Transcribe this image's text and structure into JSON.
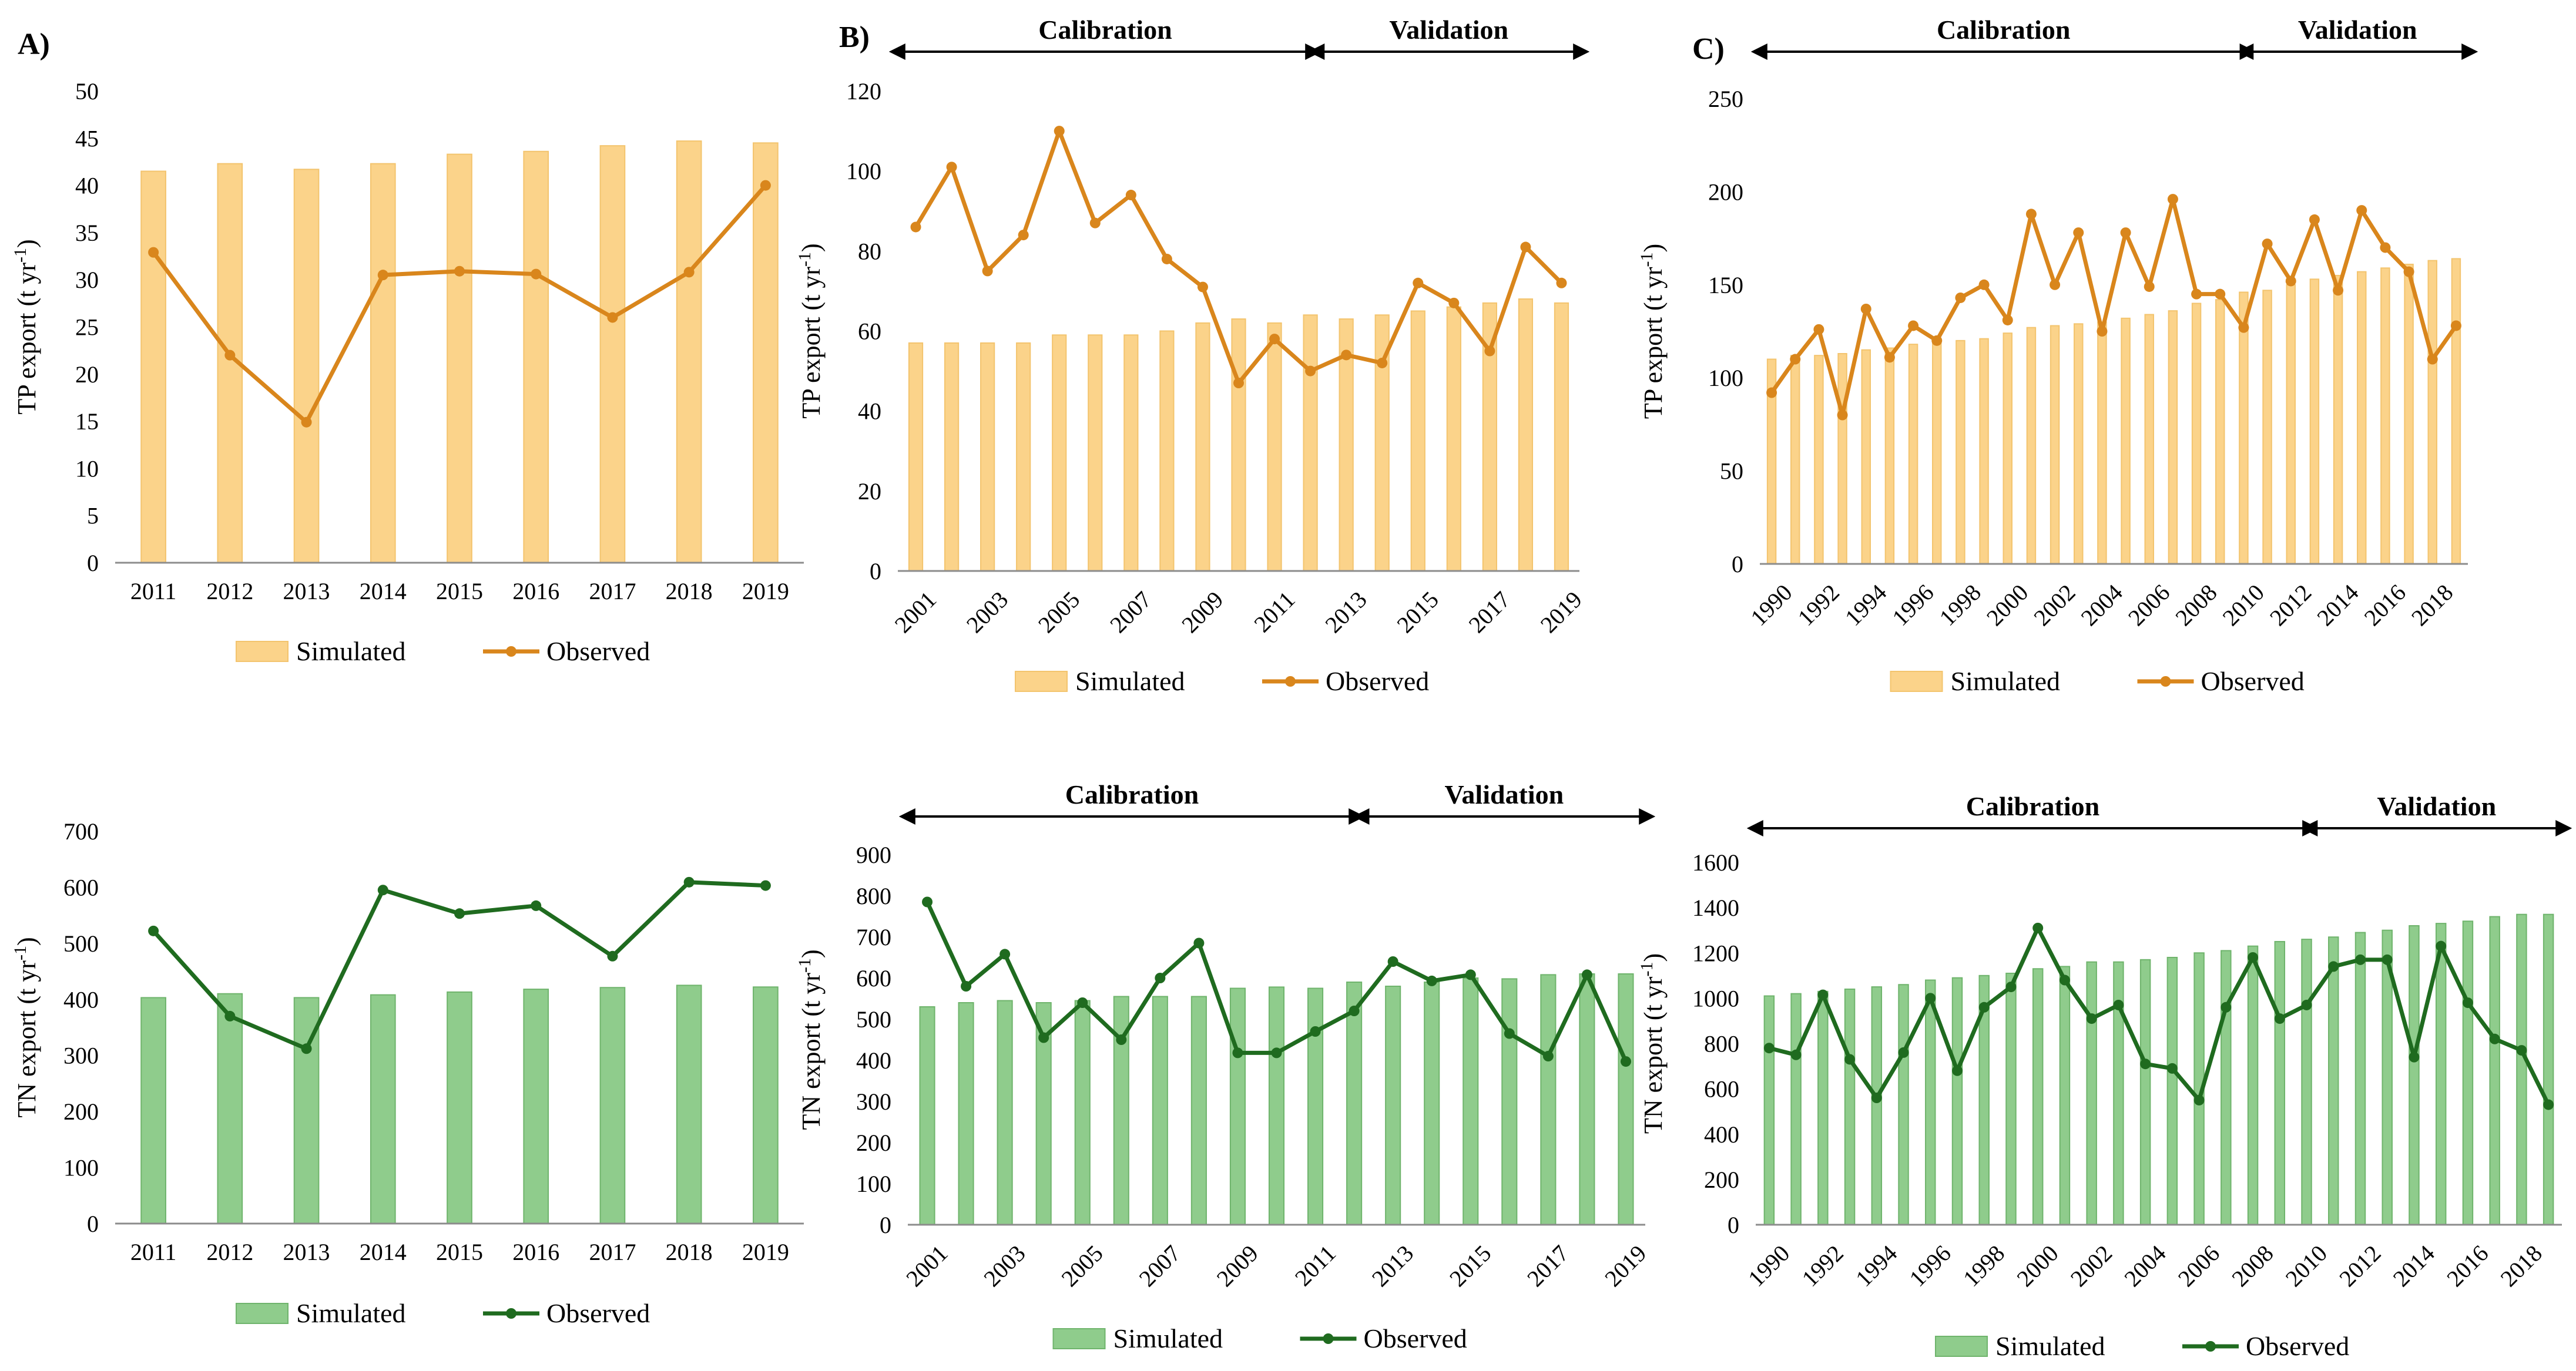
{
  "figure": {
    "colors": {
      "tp_bar_fill": "#fbd38a",
      "tp_bar_stroke": "#f3c46e",
      "tp_line": "#d9861c",
      "tn_bar_fill": "#8fcc8c",
      "tn_bar_stroke": "#6fb46c",
      "tn_line": "#1f6b1f",
      "axis": "#8c8c8c"
    },
    "legend": {
      "simulated": "Simulated",
      "observed": "Observed"
    },
    "phases": {
      "calibration": "Calibration",
      "validation": "Validation"
    }
  },
  "chart_data": [
    {
      "id": "A-TP",
      "type": "bar+line",
      "panel_label": "A)",
      "ylabel": "TP export (t yr",
      "ylabel_sup": "-1",
      "ylabel_end": ")",
      "ylim": [
        0,
        50
      ],
      "yticks": [
        0,
        5,
        10,
        15,
        20,
        25,
        30,
        35,
        40,
        45,
        50
      ],
      "categories": [
        "2011",
        "2012",
        "2013",
        "2014",
        "2015",
        "2016",
        "2017",
        "2018",
        "2019"
      ],
      "xtick_labels": [
        "2011",
        "2012",
        "2013",
        "2014",
        "2015",
        "2016",
        "2017",
        "2018",
        "2019"
      ],
      "series": [
        {
          "name": "Simulated",
          "kind": "bar",
          "values": [
            41.5,
            42.3,
            41.7,
            42.3,
            43.3,
            43.6,
            44.2,
            44.7,
            44.5
          ]
        },
        {
          "name": "Observed",
          "kind": "line",
          "values": [
            32.9,
            22.0,
            14.9,
            30.5,
            30.9,
            30.6,
            26.0,
            30.8,
            40.0
          ]
        }
      ],
      "x_tick_rotation": 0,
      "phases": []
    },
    {
      "id": "B-TP",
      "type": "bar+line",
      "panel_label": "B)",
      "ylabel": "TP export (t yr",
      "ylabel_sup": "-1",
      "ylabel_end": ")",
      "ylim": [
        0,
        120
      ],
      "yticks": [
        0,
        20,
        40,
        60,
        80,
        100,
        120
      ],
      "categories": [
        "2001",
        "2002",
        "2003",
        "2004",
        "2005",
        "2006",
        "2007",
        "2008",
        "2009",
        "2010",
        "2011",
        "2012",
        "2013",
        "2014",
        "2015",
        "2016",
        "2017",
        "2018",
        "2019"
      ],
      "xtick_labels": [
        "2001",
        "2003",
        "2005",
        "2007",
        "2009",
        "2011",
        "2013",
        "2015",
        "2017",
        "2019"
      ],
      "series": [
        {
          "name": "Simulated",
          "kind": "bar",
          "values": [
            57,
            57,
            57,
            57,
            59,
            59,
            59,
            60,
            62,
            63,
            62,
            64,
            63,
            64,
            65,
            66,
            67,
            68,
            67
          ]
        },
        {
          "name": "Observed",
          "kind": "line",
          "values": [
            86,
            101,
            75,
            84,
            110,
            87,
            94,
            78,
            71,
            47,
            58,
            50,
            54,
            52,
            72,
            67,
            55,
            81,
            72
          ]
        }
      ],
      "x_tick_rotation": -45,
      "phases": [
        {
          "label": "Calibration",
          "start": 0,
          "end": 11
        },
        {
          "label": "Validation",
          "start": 11,
          "end": 18
        }
      ]
    },
    {
      "id": "C-TP",
      "type": "bar+line",
      "panel_label": "C)",
      "ylabel": "TP export (t yr",
      "ylabel_sup": "-1",
      "ylabel_end": ")",
      "ylim": [
        0,
        250
      ],
      "yticks": [
        0,
        50,
        100,
        150,
        200,
        250
      ],
      "categories": [
        "1990",
        "1991",
        "1992",
        "1993",
        "1994",
        "1995",
        "1996",
        "1997",
        "1998",
        "1999",
        "2000",
        "2001",
        "2002",
        "2003",
        "2004",
        "2005",
        "2006",
        "2007",
        "2008",
        "2009",
        "2010",
        "2011",
        "2012",
        "2013",
        "2014",
        "2015",
        "2016",
        "2017",
        "2018",
        "2019"
      ],
      "xtick_labels": [
        "1990",
        "1992",
        "1994",
        "1996",
        "1998",
        "2000",
        "2002",
        "2004",
        "2006",
        "2008",
        "2010",
        "2012",
        "2014",
        "2016",
        "2018"
      ],
      "series": [
        {
          "name": "Simulated",
          "kind": "bar",
          "values": [
            110,
            112,
            112,
            113,
            115,
            116,
            118,
            119,
            120,
            121,
            124,
            127,
            128,
            129,
            130,
            132,
            134,
            136,
            140,
            142,
            146,
            147,
            150,
            153,
            155,
            157,
            159,
            161,
            163,
            164
          ]
        },
        {
          "name": "Observed",
          "kind": "line",
          "values": [
            92,
            110,
            126,
            80,
            137,
            111,
            128,
            120,
            143,
            150,
            131,
            188,
            150,
            178,
            125,
            178,
            149,
            196,
            145,
            145,
            127,
            172,
            152,
            185,
            147,
            190,
            170,
            157,
            110,
            128
          ]
        }
      ],
      "x_tick_rotation": -45,
      "phases": [
        {
          "label": "Calibration",
          "start": 0,
          "end": 20
        },
        {
          "label": "Validation",
          "start": 20,
          "end": 29
        }
      ]
    },
    {
      "id": "A-TN",
      "type": "bar+line",
      "panel_label": "",
      "ylabel": "TN export (t yr",
      "ylabel_sup": "-1",
      "ylabel_end": ")",
      "ylim": [
        0,
        700
      ],
      "yticks": [
        0,
        100,
        200,
        300,
        400,
        500,
        600,
        700
      ],
      "categories": [
        "2011",
        "2012",
        "2013",
        "2014",
        "2015",
        "2016",
        "2017",
        "2018",
        "2019"
      ],
      "xtick_labels": [
        "2011",
        "2012",
        "2013",
        "2014",
        "2015",
        "2016",
        "2017",
        "2018",
        "2019"
      ],
      "series": [
        {
          "name": "Simulated",
          "kind": "bar",
          "values": [
            403,
            410,
            403,
            408,
            413,
            418,
            421,
            425,
            422
          ]
        },
        {
          "name": "Observed",
          "kind": "line",
          "values": [
            522,
            370,
            312,
            595,
            553,
            567,
            477,
            609,
            603
          ]
        }
      ],
      "x_tick_rotation": 0,
      "phases": []
    },
    {
      "id": "B-TN",
      "type": "bar+line",
      "panel_label": "",
      "ylabel": "TN export (t yr",
      "ylabel_sup": "-1",
      "ylabel_end": ")",
      "ylim": [
        0,
        900
      ],
      "yticks": [
        0,
        100,
        200,
        300,
        400,
        500,
        600,
        700,
        800,
        900
      ],
      "categories": [
        "2001",
        "2002",
        "2003",
        "2004",
        "2005",
        "2006",
        "2007",
        "2008",
        "2009",
        "2010",
        "2011",
        "2012",
        "2013",
        "2014",
        "2015",
        "2016",
        "2017",
        "2018",
        "2019"
      ],
      "xtick_labels": [
        "2001",
        "2003",
        "2005",
        "2007",
        "2009",
        "2011",
        "2013",
        "2015",
        "2017",
        "2019"
      ],
      "series": [
        {
          "name": "Simulated",
          "kind": "bar",
          "values": [
            530,
            540,
            545,
            540,
            545,
            555,
            555,
            555,
            575,
            578,
            575,
            590,
            580,
            590,
            600,
            598,
            608,
            610,
            610
          ]
        },
        {
          "name": "Observed",
          "kind": "line",
          "values": [
            785,
            580,
            658,
            455,
            540,
            450,
            600,
            685,
            418,
            418,
            470,
            520,
            640,
            593,
            608,
            465,
            410,
            608,
            397
          ]
        }
      ],
      "x_tick_rotation": -45,
      "phases": [
        {
          "label": "Calibration",
          "start": 0,
          "end": 11
        },
        {
          "label": "Validation",
          "start": 11,
          "end": 18
        }
      ]
    },
    {
      "id": "C-TN",
      "type": "bar+line",
      "panel_label": "",
      "ylabel": "TN export (t yr",
      "ylabel_sup": "-1",
      "ylabel_end": ")",
      "ylim": [
        0,
        1600
      ],
      "yticks": [
        0,
        200,
        400,
        600,
        800,
        1000,
        1200,
        1400,
        1600
      ],
      "categories": [
        "1990",
        "1991",
        "1992",
        "1993",
        "1994",
        "1995",
        "1996",
        "1997",
        "1998",
        "1999",
        "2000",
        "2001",
        "2002",
        "2003",
        "2004",
        "2005",
        "2006",
        "2007",
        "2008",
        "2009",
        "2010",
        "2011",
        "2012",
        "2013",
        "2014",
        "2015",
        "2016",
        "2017",
        "2018",
        "2019"
      ],
      "xtick_labels": [
        "1990",
        "1992",
        "1994",
        "1996",
        "1998",
        "2000",
        "2002",
        "2004",
        "2006",
        "2008",
        "2010",
        "2012",
        "2014",
        "2016",
        "2018"
      ],
      "series": [
        {
          "name": "Simulated",
          "kind": "bar",
          "values": [
            1010,
            1020,
            1030,
            1040,
            1050,
            1060,
            1080,
            1090,
            1100,
            1110,
            1130,
            1140,
            1160,
            1160,
            1170,
            1180,
            1200,
            1210,
            1230,
            1250,
            1260,
            1270,
            1290,
            1300,
            1320,
            1330,
            1340,
            1360,
            1370,
            1370
          ]
        },
        {
          "name": "Observed",
          "kind": "line",
          "values": [
            780,
            750,
            1015,
            730,
            560,
            760,
            1000,
            680,
            960,
            1050,
            1310,
            1080,
            910,
            970,
            710,
            690,
            550,
            960,
            1180,
            910,
            970,
            1140,
            1170,
            1170,
            740,
            1230,
            980,
            820,
            770,
            530
          ]
        }
      ],
      "x_tick_rotation": -45,
      "phases": [
        {
          "label": "Calibration",
          "start": 0,
          "end": 20
        },
        {
          "label": "Validation",
          "start": 20,
          "end": 29
        }
      ]
    }
  ]
}
